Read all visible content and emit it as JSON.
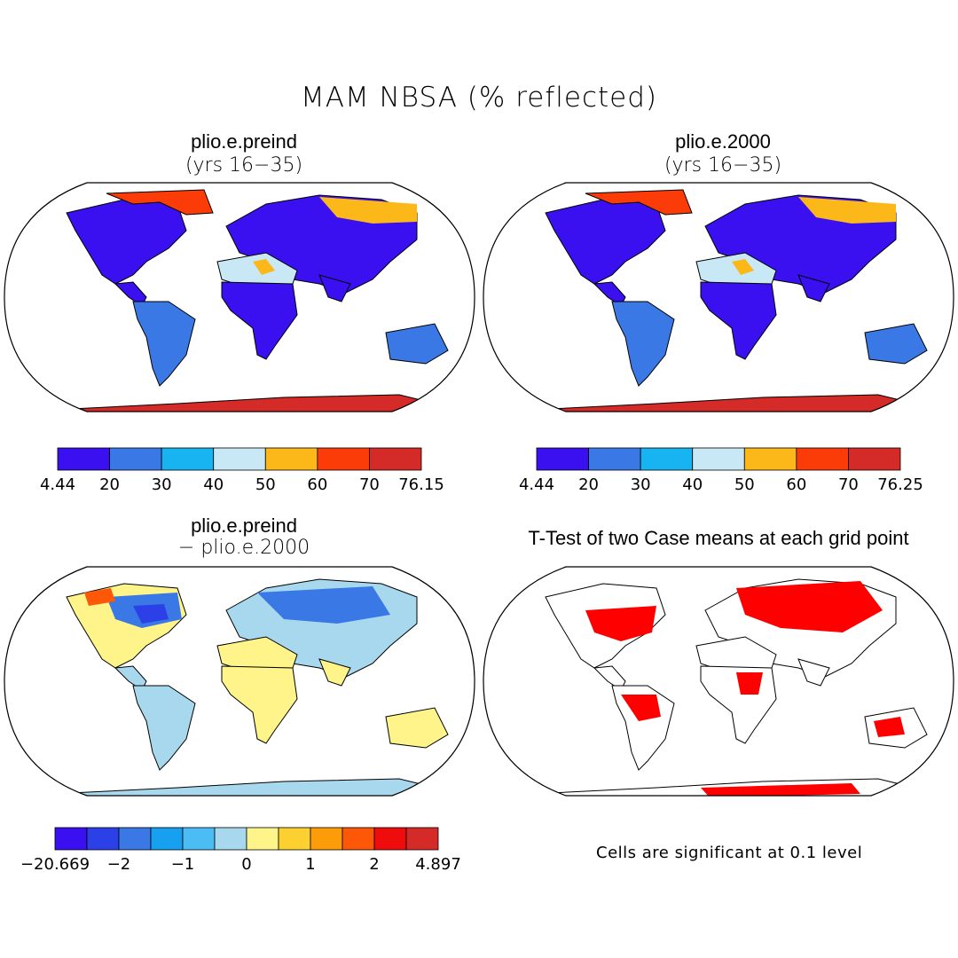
{
  "title": "MAM NBSA (% reflected)",
  "panels": [
    {
      "title": "plio.e.preind",
      "subtitle": "(yrs 16−35)",
      "colorbar": {
        "colors": [
          "#3a10f0",
          "#3a78e6",
          "#18b4f2",
          "#c8e8f6",
          "#fcb818",
          "#fc3c08",
          "#d42a28"
        ],
        "labels": [
          "4.44",
          "20",
          "30",
          "40",
          "50",
          "60",
          "70",
          "76.15"
        ]
      }
    },
    {
      "title": "plio.e.2000",
      "subtitle": "(yrs 16−35)",
      "colorbar": {
        "colors": [
          "#3a10f0",
          "#3a78e6",
          "#18b4f2",
          "#c8e8f6",
          "#fcb818",
          "#fc3c08",
          "#d42a28"
        ],
        "labels": [
          "4.44",
          "20",
          "30",
          "40",
          "50",
          "60",
          "70",
          "76.25"
        ]
      }
    },
    {
      "title": "plio.e.preind",
      "subtitle": "− plio.e.2000",
      "colorbar": {
        "colors": [
          "#3a10f0",
          "#2c40e8",
          "#3a78e6",
          "#18a0f0",
          "#4cbcf4",
          "#a8d8ee",
          "#fef48a",
          "#fcd030",
          "#fc9c08",
          "#fc5808",
          "#ee0c0c",
          "#d42a28"
        ],
        "labels": [
          "−20.669",
          "−2",
          "−1",
          "0",
          "1",
          "2",
          "4.897"
        ]
      }
    },
    {
      "title": "T-Test of two Case means at each grid point",
      "note": "Cells are significant at 0.1 level"
    }
  ]
}
